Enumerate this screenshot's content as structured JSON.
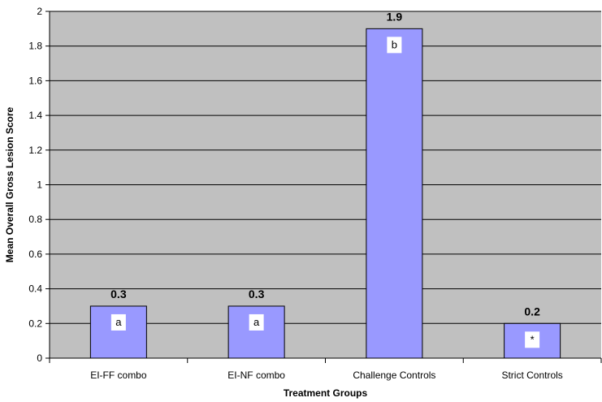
{
  "colors": {
    "plot_background": "#c0c0c0",
    "bar_fill": "#9999ff",
    "bar_stroke": "#000000",
    "gridline": "#000000",
    "letter_box": "#ffffff"
  },
  "chart_data": {
    "type": "bar",
    "title": "",
    "xlabel": "Treatment Groups",
    "ylabel": "Mean Overall Gross Lesion Score",
    "categories": [
      "EI-FF combo",
      "EI-NF combo",
      "Challenge Controls",
      "Strict Controls"
    ],
    "values": [
      0.3,
      0.3,
      1.9,
      0.2
    ],
    "value_labels": [
      "0.3",
      "0.3",
      "1.9",
      "0.2"
    ],
    "significance_letters": [
      "a",
      "a",
      "b",
      "*"
    ],
    "ylim": [
      0,
      2
    ],
    "yticks": [
      "0",
      "0.2",
      "0.4",
      "0.6",
      "0.8",
      "1",
      "1.2",
      "1.4",
      "1.6",
      "1.8",
      "2"
    ],
    "grid": true,
    "legend": "none"
  }
}
